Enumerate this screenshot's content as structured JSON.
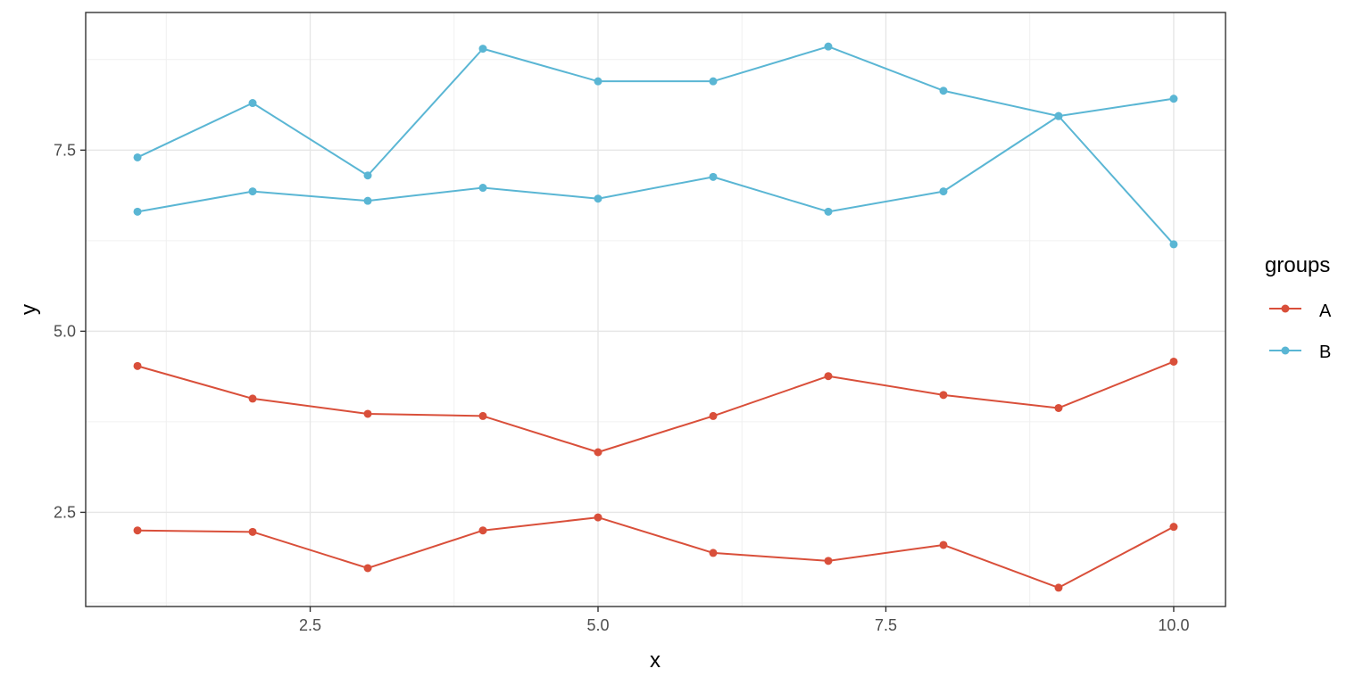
{
  "chart_data": {
    "type": "line",
    "xlabel": "x",
    "ylabel": "y",
    "xlim": [
      0.55,
      10.45
    ],
    "ylim": [
      1.2,
      9.4
    ],
    "x_ticks": [
      2.5,
      5.0,
      7.5,
      10.0
    ],
    "x_tick_labels": [
      "2.5",
      "5.0",
      "7.5",
      "10.0"
    ],
    "y_ticks": [
      2.5,
      5.0,
      7.5
    ],
    "y_tick_labels": [
      "2.5",
      "5.0",
      "7.5"
    ],
    "grid": true,
    "legend": {
      "title": "groups",
      "position": "right",
      "entries": [
        {
          "label": "A",
          "color": "#D94F3A"
        },
        {
          "label": "B",
          "color": "#5AB6D4"
        }
      ]
    },
    "series": [
      {
        "group": "A",
        "color": "#D94F3A",
        "x": [
          1,
          2,
          3,
          4,
          5,
          6,
          7,
          8,
          9,
          10
        ],
        "y": [
          4.52,
          4.07,
          3.86,
          3.83,
          3.33,
          3.83,
          4.38,
          4.12,
          3.94,
          4.58
        ]
      },
      {
        "group": "A",
        "color": "#D94F3A",
        "x": [
          1,
          2,
          3,
          4,
          5,
          6,
          7,
          8,
          9,
          10
        ],
        "y": [
          2.25,
          2.23,
          1.73,
          2.25,
          2.43,
          1.94,
          1.83,
          2.05,
          1.46,
          2.3
        ]
      },
      {
        "group": "B",
        "color": "#5AB6D4",
        "x": [
          1,
          2,
          3,
          4,
          5,
          6,
          7,
          8,
          9,
          10
        ],
        "y": [
          7.4,
          8.15,
          7.15,
          8.9,
          8.45,
          8.45,
          8.93,
          8.32,
          7.97,
          8.21
        ]
      },
      {
        "group": "B",
        "color": "#5AB6D4",
        "x": [
          1,
          2,
          3,
          4,
          5,
          6,
          7,
          8,
          9,
          10
        ],
        "y": [
          6.65,
          6.93,
          6.8,
          6.98,
          6.83,
          7.13,
          6.65,
          6.93,
          7.97,
          6.2
        ]
      }
    ]
  }
}
